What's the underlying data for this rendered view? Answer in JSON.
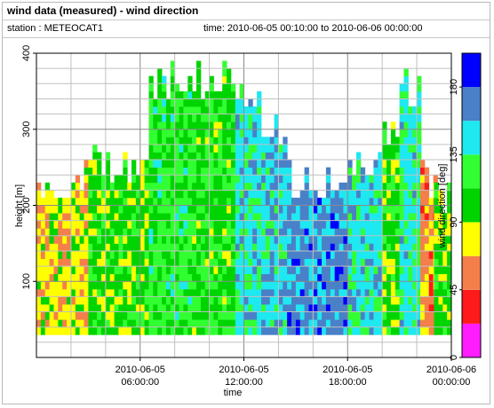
{
  "window": {
    "title": "wind data (measured) - wind direction",
    "station": "station : METEOCAT1",
    "time_range": "time: 2010-06-05 00:10:00 to 2010-06-06 00:00:00"
  },
  "chart_data": {
    "type": "heatmap",
    "xlabel": "time",
    "ylabel": "height [m]",
    "xlim": [
      0,
      24
    ],
    "ylim": [
      0,
      400
    ],
    "x_tick_labels": [
      {
        "at": 6,
        "line1": "2010-06-05",
        "line2": "06:00:00"
      },
      {
        "at": 12,
        "line1": "2010-06-05",
        "line2": "12:00:00"
      },
      {
        "at": 18,
        "line1": "2010-06-05",
        "line2": "18:00:00"
      },
      {
        "at": 24,
        "line1": "2010-06-06",
        "line2": "00:00:00"
      }
    ],
    "y_ticks": [
      100,
      200,
      300,
      400
    ],
    "grid": true,
    "colorbar": {
      "label": "wind direction [deg]",
      "ticks": [
        0,
        45,
        90,
        135,
        180
      ],
      "bins": [
        {
          "from": 0,
          "to": 22.5,
          "color": "#ff1cff"
        },
        {
          "from": 22.5,
          "to": 45,
          "color": "#ff1a1a"
        },
        {
          "from": 45,
          "to": 67.5,
          "color": "#f47f4a"
        },
        {
          "from": 67.5,
          "to": 90,
          "color": "#ffff00"
        },
        {
          "from": 90,
          "to": 112.5,
          "color": "#00d400"
        },
        {
          "from": 112.5,
          "to": 135,
          "color": "#32ff32"
        },
        {
          "from": 135,
          "to": 157.5,
          "color": "#1ee8f0"
        },
        {
          "from": 157.5,
          "to": 180,
          "color": "#4a80c8"
        },
        {
          "from": 180,
          "to": 202.5,
          "color": "#0000ff"
        }
      ]
    },
    "time_segments": [
      {
        "t0": 0.0,
        "t1": 3.0,
        "top": 230,
        "direction": 78
      },
      {
        "t0": 3.0,
        "t1": 6.5,
        "top": 250,
        "direction": 102
      },
      {
        "t0": 6.5,
        "t1": 9.0,
        "top": 355,
        "direction": 118
      },
      {
        "t0": 9.0,
        "t1": 11.5,
        "top": 365,
        "direction": 108
      },
      {
        "t0": 11.5,
        "t1": 13.0,
        "top": 340,
        "direction": 145
      },
      {
        "t0": 13.0,
        "t1": 14.5,
        "top": 290,
        "direction": 150
      },
      {
        "t0": 14.5,
        "t1": 18.0,
        "top": 230,
        "direction": 166
      },
      {
        "t0": 18.0,
        "t1": 20.0,
        "top": 250,
        "direction": 145
      },
      {
        "t0": 20.0,
        "t1": 21.0,
        "top": 290,
        "direction": 100
      },
      {
        "t0": 21.0,
        "t1": 22.2,
        "top": 350,
        "direction": 140
      },
      {
        "t0": 22.2,
        "t1": 23.0,
        "top": 230,
        "direction": 60
      },
      {
        "t0": 23.0,
        "t1": 24.0,
        "top": 205,
        "direction": 100
      }
    ]
  }
}
